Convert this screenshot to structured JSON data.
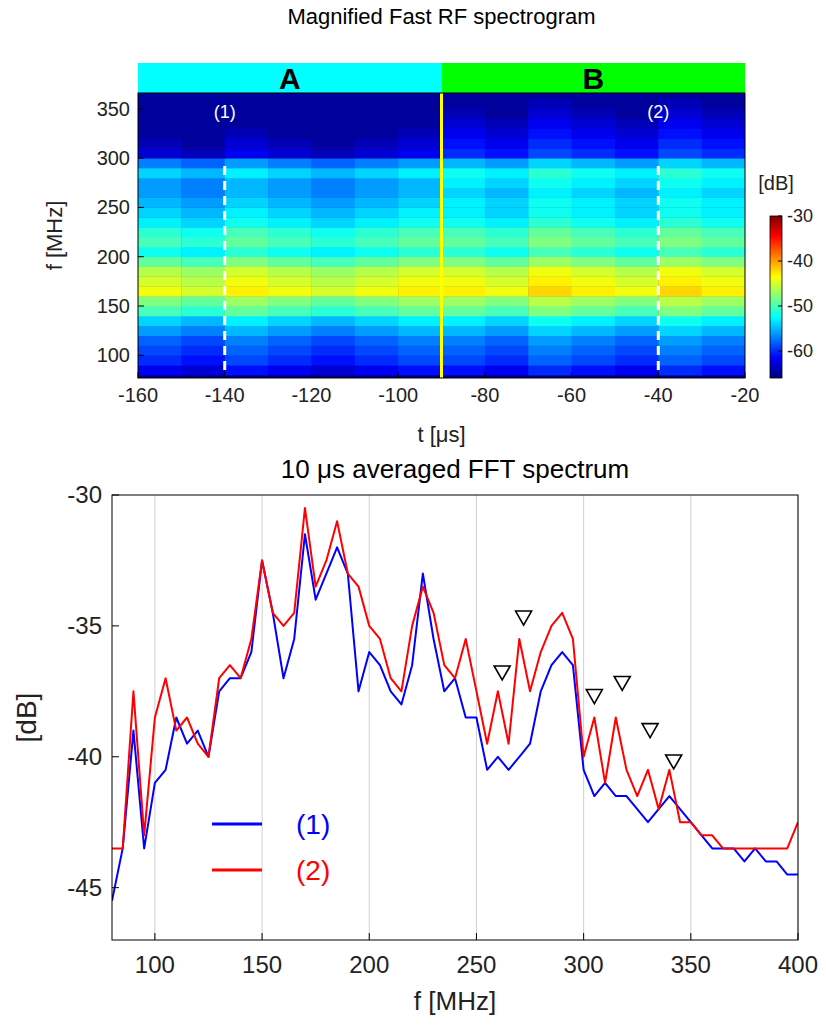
{
  "chart_data": [
    {
      "type": "heatmap",
      "title": "Magnified Fast RF spectrogram",
      "x_label": "t [μs]",
      "y_label": "f [MHz]",
      "xlim": [
        -160,
        -20
      ],
      "xticks": [
        -160,
        -140,
        -120,
        -100,
        -80,
        -60,
        -40,
        -20
      ],
      "ylim": [
        77,
        366
      ],
      "yticks": [
        100,
        150,
        200,
        250,
        300,
        350
      ],
      "x": [
        -155,
        -145,
        -135,
        -125,
        -115,
        -105,
        -95,
        -85,
        -75,
        -65,
        -55,
        -45,
        -35,
        -25
      ],
      "y": [
        85,
        95,
        105,
        115,
        125,
        135,
        145,
        155,
        165,
        175,
        185,
        195,
        205,
        215,
        225,
        235,
        245,
        255,
        265,
        275,
        285,
        295,
        305,
        315,
        325,
        335,
        345,
        355,
        365
      ],
      "cells": [
        [
          -62,
          -63,
          -61,
          -62,
          -63,
          -62,
          -61,
          -61,
          -62,
          -60,
          -61,
          -62,
          -60,
          -61
        ],
        [
          -60,
          -61,
          -59,
          -60,
          -61,
          -60,
          -59,
          -59,
          -60,
          -58,
          -59,
          -60,
          -58,
          -59
        ],
        [
          -59,
          -60,
          -58,
          -59,
          -60,
          -59,
          -58,
          -58,
          -59,
          -57,
          -58,
          -59,
          -57,
          -58
        ],
        [
          -58,
          -59,
          -57,
          -58,
          -59,
          -58,
          -57,
          -57,
          -58,
          -56,
          -57,
          -58,
          -56,
          -57
        ],
        [
          -56,
          -57,
          -55,
          -56,
          -57,
          -56,
          -55,
          -55,
          -56,
          -54,
          -55,
          -56,
          -54,
          -55
        ],
        [
          -54,
          -55,
          -53,
          -54,
          -55,
          -54,
          -53,
          -53,
          -54,
          -52,
          -53,
          -54,
          -52,
          -53
        ],
        [
          -50,
          -51,
          -49,
          -50,
          -51,
          -50,
          -49,
          -49,
          -50,
          -48,
          -49,
          -50,
          -48,
          -49
        ],
        [
          -48,
          -49,
          -47,
          -48,
          -49,
          -48,
          -47,
          -47,
          -48,
          -46,
          -47,
          -48,
          -46,
          -47
        ],
        [
          -44,
          -45,
          -43,
          -44,
          -45,
          -44,
          -43,
          -43,
          -44,
          -42,
          -43,
          -44,
          -42,
          -43
        ],
        [
          -45,
          -46,
          -44,
          -45,
          -46,
          -45,
          -44,
          -44,
          -45,
          -43,
          -44,
          -45,
          -43,
          -44
        ],
        [
          -46,
          -47,
          -45,
          -46,
          -47,
          -46,
          -45,
          -45,
          -46,
          -44,
          -45,
          -46,
          -44,
          -45
        ],
        [
          -49,
          -50,
          -48,
          -49,
          -50,
          -49,
          -48,
          -48,
          -49,
          -47,
          -48,
          -49,
          -47,
          -48
        ],
        [
          -52,
          -53,
          -51,
          -52,
          -53,
          -52,
          -51,
          -51,
          -52,
          -50,
          -51,
          -52,
          -50,
          -51
        ],
        [
          -50,
          -51,
          -49,
          -50,
          -51,
          -50,
          -49,
          -49,
          -50,
          -48,
          -49,
          -50,
          -48,
          -49
        ],
        [
          -51,
          -52,
          -50,
          -51,
          -52,
          -51,
          -50,
          -50,
          -51,
          -49,
          -50,
          -51,
          -49,
          -50
        ],
        [
          -53,
          -54,
          -52,
          -53,
          -54,
          -53,
          -52,
          -52,
          -53,
          -51,
          -52,
          -53,
          -51,
          -52
        ],
        [
          -54,
          -55,
          -53,
          -54,
          -55,
          -54,
          -53,
          -53,
          -54,
          -52,
          -53,
          -54,
          -52,
          -53
        ],
        [
          -55,
          -56,
          -54,
          -55,
          -56,
          -55,
          -54,
          -53,
          -54,
          -52,
          -53,
          -54,
          -52,
          -53
        ],
        [
          -56,
          -57,
          -55,
          -56,
          -57,
          -56,
          -55,
          -54,
          -55,
          -53,
          -54,
          -55,
          -53,
          -54
        ],
        [
          -56,
          -57,
          -55,
          -56,
          -57,
          -56,
          -55,
          -53,
          -54,
          -52,
          -53,
          -54,
          -52,
          -53
        ],
        [
          -54,
          -55,
          -53,
          -54,
          -55,
          -54,
          -53,
          -52,
          -53,
          -51,
          -52,
          -53,
          -51,
          -52
        ],
        [
          -57,
          -58,
          -56,
          -57,
          -58,
          -57,
          -56,
          -55,
          -56,
          -54,
          -55,
          -56,
          -54,
          -55
        ],
        [
          -63,
          -64,
          -62,
          -63,
          -64,
          -63,
          -62,
          -60,
          -61,
          -59,
          -60,
          -61,
          -59,
          -60
        ],
        [
          -64,
          -65,
          -63,
          -64,
          -65,
          -64,
          -63,
          -61,
          -62,
          -60,
          -61,
          -62,
          -60,
          -61
        ],
        [
          -65,
          -65,
          -64,
          -65,
          -65,
          -65,
          -64,
          -62,
          -63,
          -61,
          -62,
          -63,
          -61,
          -62
        ],
        [
          -65,
          -65,
          -65,
          -65,
          -65,
          -65,
          -65,
          -63,
          -64,
          -62,
          -63,
          -64,
          -62,
          -63
        ],
        [
          -65,
          -65,
          -65,
          -65,
          -65,
          -65,
          -65,
          -64,
          -65,
          -63,
          -64,
          -65,
          -63,
          -64
        ],
        [
          -65,
          -65,
          -65,
          -65,
          -65,
          -65,
          -65,
          -65,
          -65,
          -64,
          -65,
          -65,
          -64,
          -65
        ],
        [
          -65,
          -65,
          -65,
          -65,
          -65,
          -65,
          -65,
          -65,
          -65,
          -65,
          -65,
          -65,
          -65,
          -65
        ]
      ],
      "color_bar": {
        "label": "[dB]",
        "range": [
          -66,
          -30
        ],
        "ticks": [
          -30,
          -40,
          -50,
          -60
        ]
      },
      "regions": [
        {
          "label": "A",
          "color": "#00ffff",
          "x": [
            -160,
            -90
          ]
        },
        {
          "label": "B",
          "color": "#00ff00",
          "x": [
            -90,
            -20
          ]
        }
      ],
      "boundary": -90,
      "cursors": [
        {
          "label": "(1)",
          "x": -140,
          "y_range": [
            85,
            298
          ]
        },
        {
          "label": "(2)",
          "x": -40,
          "y_range": [
            85,
            298
          ]
        }
      ]
    },
    {
      "type": "line",
      "title": "10 μs averaged FFT spectrum",
      "x_label": "f [MHz]",
      "y_label": "[dB]",
      "xlim": [
        80,
        400
      ],
      "xticks": [
        100,
        150,
        200,
        250,
        300,
        350,
        400
      ],
      "ylim": [
        -47,
        -30
      ],
      "yticks": [
        -45,
        -40,
        -35,
        -30
      ],
      "grid": "x",
      "legend": "lower left",
      "x": [
        80,
        85,
        90,
        95,
        100,
        105,
        110,
        115,
        120,
        125,
        130,
        135,
        140,
        145,
        150,
        155,
        160,
        165,
        170,
        175,
        180,
        185,
        190,
        195,
        200,
        205,
        210,
        215,
        220,
        225,
        230,
        235,
        240,
        245,
        250,
        255,
        260,
        265,
        270,
        275,
        280,
        285,
        290,
        295,
        300,
        305,
        310,
        315,
        320,
        325,
        330,
        335,
        340,
        345,
        350,
        355,
        360,
        365,
        370,
        375,
        380,
        385,
        390,
        395,
        400
      ],
      "series": [
        {
          "name": "(1)",
          "color": "#0000ff",
          "values": [
            -45.5,
            -43.5,
            -39,
            -43.5,
            -41,
            -40.5,
            -38.5,
            -39.5,
            -39,
            -40,
            -37.5,
            -37,
            -37,
            -36,
            -32.5,
            -34.5,
            -37,
            -35.5,
            -31.5,
            -34,
            -33,
            -32,
            -33,
            -37.5,
            -36,
            -36.5,
            -37.5,
            -38,
            -36.5,
            -33,
            -35.5,
            -37.5,
            -37,
            -38.5,
            -38.5,
            -40.5,
            -40,
            -40.5,
            -40,
            -39.5,
            -37.5,
            -36.5,
            -36,
            -36.5,
            -40.5,
            -41.5,
            -41,
            -41.5,
            -41.5,
            -42,
            -42.5,
            -42,
            -41.5,
            -42,
            -42.5,
            -43,
            -43.5,
            -43.5,
            -43.5,
            -44,
            -43.5,
            -44,
            -44,
            -44.5,
            -44.5
          ]
        },
        {
          "name": "(2)",
          "color": "#ff0000",
          "values": [
            -43.5,
            -43.5,
            -37.5,
            -43,
            -38.5,
            -37,
            -39,
            -38.5,
            -39.5,
            -40,
            -37,
            -36.5,
            -37,
            -35.5,
            -32.5,
            -34.5,
            -35,
            -34.5,
            -30.5,
            -33.5,
            -32.5,
            -31,
            -33,
            -33.5,
            -35,
            -35.5,
            -37,
            -37.5,
            -35,
            -33.5,
            -34.5,
            -36.5,
            -37,
            -35.5,
            -37.5,
            -39.5,
            -37.5,
            -39.5,
            -35.5,
            -37.5,
            -36,
            -35,
            -34.5,
            -35.5,
            -40,
            -38.5,
            -41,
            -38.5,
            -40.5,
            -41.5,
            -40.5,
            -42,
            -40.5,
            -42.5,
            -42.5,
            -43,
            -43,
            -43.5,
            -43.5,
            -43.5,
            -43.5,
            -43.5,
            -43.5,
            -43.5,
            -42.5
          ]
        }
      ],
      "markers": {
        "x": [
          262,
          272,
          305,
          318,
          331,
          342
        ],
        "y": [
          -36.8,
          -34.7,
          -37.7,
          -37.2,
          -39,
          -40.2
        ]
      }
    }
  ]
}
